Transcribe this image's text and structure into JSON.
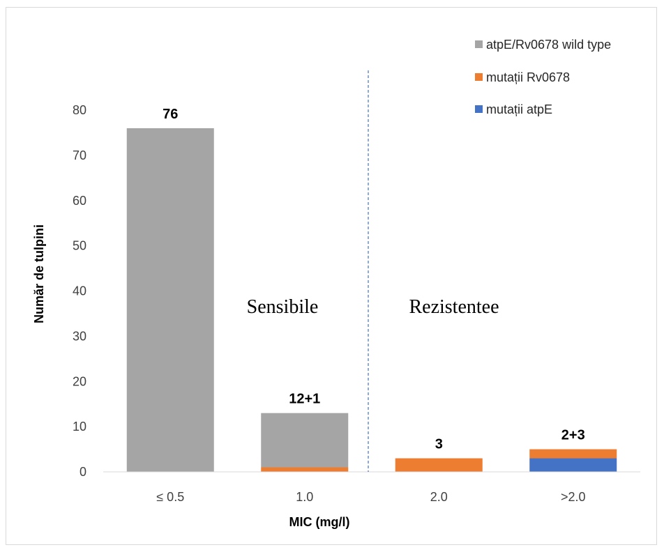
{
  "chart_data": {
    "type": "bar",
    "stacked": true,
    "categories": [
      "≤ 0.5",
      "1.0",
      "2.0",
      ">2.0"
    ],
    "series": [
      {
        "name": "mutații atpE",
        "color": "#4472c4",
        "values": [
          0,
          0,
          0,
          3
        ]
      },
      {
        "name": "mutații Rv0678",
        "color": "#ed7d31",
        "values": [
          0,
          1,
          3,
          2
        ]
      },
      {
        "name": "atpE/Rv0678 wild type",
        "color": "#a5a5a5",
        "values": [
          76,
          12,
          0,
          0
        ]
      }
    ],
    "data_labels": [
      "76",
      "12+1",
      "3",
      "2+3"
    ],
    "xlabel": "MIC (mg/l)",
    "ylabel": "Număr de tulpini",
    "ylim": [
      0,
      80
    ],
    "yticks": [
      0,
      10,
      20,
      30,
      40,
      50,
      60,
      70,
      80
    ],
    "grid": false,
    "legend_position": "top-right",
    "legend_order": [
      "atpE/Rv0678 wild type",
      "mutații Rv0678",
      "mutații atpE"
    ],
    "annotations": [
      "Sensibile",
      "Rezistentee"
    ],
    "divider": {
      "between": [
        "1.0",
        "2.0"
      ],
      "style": "dashed",
      "color": "#4472c4"
    }
  }
}
